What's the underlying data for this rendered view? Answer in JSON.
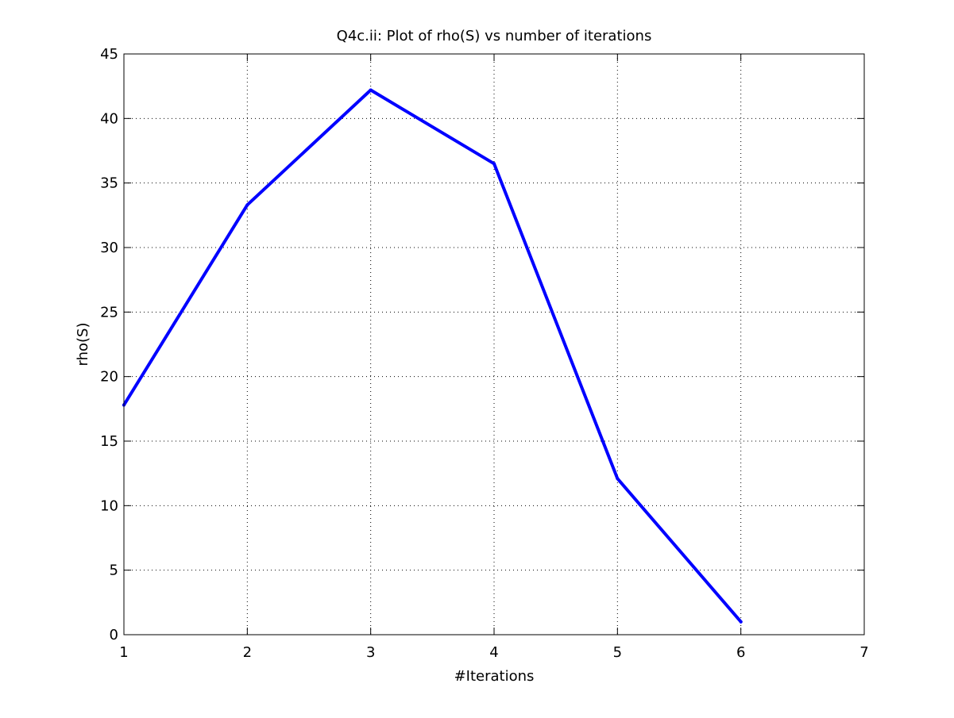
{
  "chart_data": {
    "type": "line",
    "title": "Q4c.ii: Plot of rho(S) vs number of iterations",
    "xlabel": "#Iterations",
    "ylabel": "rho(S)",
    "xlim": [
      1,
      7
    ],
    "ylim": [
      0,
      45
    ],
    "xticks": [
      "1",
      "2",
      "3",
      "4",
      "5",
      "6",
      "7"
    ],
    "yticks": [
      "0",
      "5",
      "10",
      "15",
      "20",
      "25",
      "30",
      "35",
      "40",
      "45"
    ],
    "grid": true,
    "series": [
      {
        "x": [
          1,
          2,
          3,
          4,
          5,
          6
        ],
        "y": [
          17.8,
          33.3,
          42.2,
          36.5,
          12.1,
          1.0
        ],
        "color": "#0000ff"
      }
    ]
  }
}
